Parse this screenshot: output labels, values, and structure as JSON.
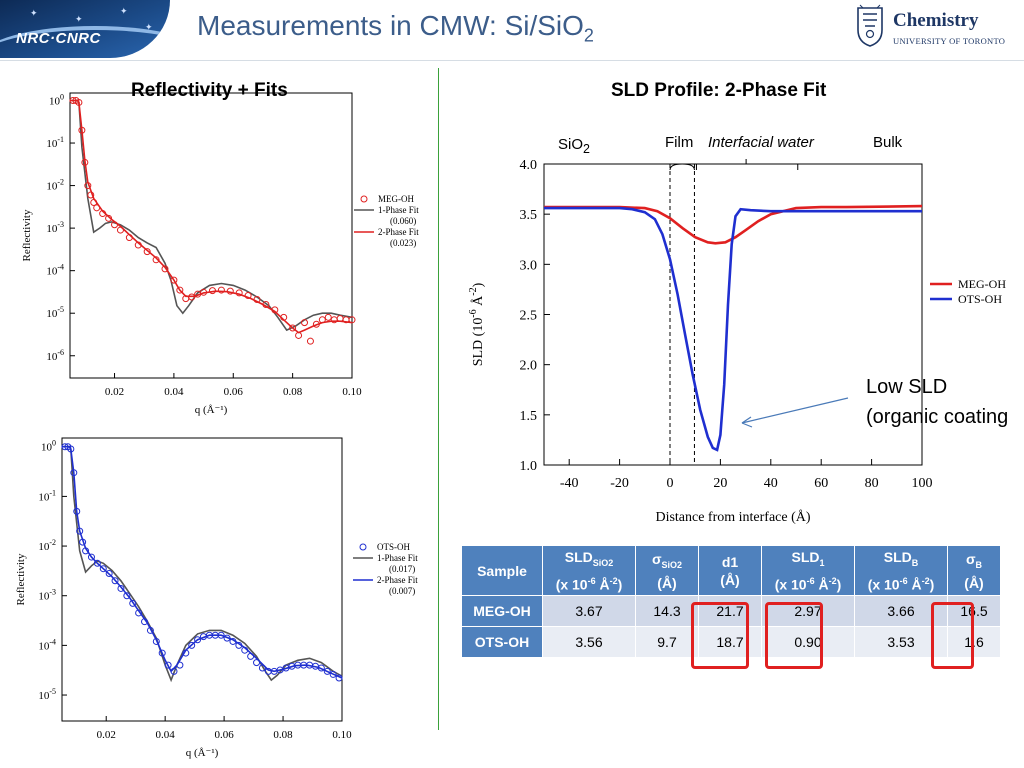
{
  "header": {
    "title_main": "Measurements in CMW: Si/SiO",
    "title_sub": "2",
    "nrc_logo_text": "NRC·CNRC",
    "uoft_chemistry": "Chemistry",
    "uoft_university": "UNIVERSITY OF TORONTO"
  },
  "colors": {
    "red": "#e02020",
    "blue": "#1f2fd0",
    "gray": "#555555",
    "title": "#3c5d8a",
    "table_header": "#4f81bd",
    "divider": "#3aa13a"
  },
  "left": {
    "title": "Reflectivity + Fits"
  },
  "right": {
    "title": "SLD Profile:  2-Phase Fit",
    "region_sio2": "SiO",
    "region_sio2_sub": "2",
    "region_film": "Film",
    "region_water": "Interfacial water",
    "region_bulk": "Bulk",
    "annotation_line1": "Low SLD",
    "annotation_line2": "(organic coating"
  },
  "chart_data": [
    {
      "type": "scatter",
      "name": "meg-reflectivity",
      "xlabel": "q (Å⁻¹)",
      "ylabel": "Reflectivity",
      "y_scale": "log",
      "xlim": [
        0.005,
        0.1
      ],
      "ylim": [
        3e-07,
        1.5
      ],
      "xticks": [
        "0.02",
        "0.04",
        "0.06",
        "0.08",
        "0.10"
      ],
      "xtick_values": [
        0.02,
        0.04,
        0.06,
        0.08,
        0.1
      ],
      "yticks_exp": [
        0,
        -1,
        -2,
        -3,
        -4,
        -5,
        -6
      ],
      "legend_position": "right",
      "legend": [
        {
          "label": "MEG-OH",
          "style": "marker",
          "color": "#e02020"
        },
        {
          "label": "1-Phase Fit",
          "sub": "(0.060)",
          "style": "line",
          "color": "#555555"
        },
        {
          "label": "2-Phase Fit",
          "sub": "(0.023)",
          "style": "line",
          "color": "#e02020"
        }
      ],
      "series": [
        {
          "name": "MEG-OH",
          "kind": "points",
          "color": "#e02020",
          "x": [
            0.006,
            0.007,
            0.008,
            0.009,
            0.01,
            0.011,
            0.012,
            0.013,
            0.014,
            0.016,
            0.018,
            0.02,
            0.022,
            0.025,
            0.028,
            0.031,
            0.034,
            0.037,
            0.04,
            0.042,
            0.044,
            0.046,
            0.048,
            0.05,
            0.053,
            0.056,
            0.059,
            0.062,
            0.065,
            0.068,
            0.071,
            0.074,
            0.077,
            0.08,
            0.082,
            0.084,
            0.086,
            0.088,
            0.09,
            0.092,
            0.094,
            0.096,
            0.098,
            0.1
          ],
          "y": [
            1,
            1,
            0.9,
            0.2,
            0.035,
            0.01,
            0.006,
            0.004,
            0.003,
            0.0022,
            0.0017,
            0.0012,
            0.0009,
            0.0006,
            0.0004,
            0.00028,
            0.00018,
            0.00011,
            6e-05,
            3.5e-05,
            2.2e-05,
            2.4e-05,
            2.8e-05,
            3.1e-05,
            3.4e-05,
            3.5e-05,
            3.3e-05,
            3e-05,
            2.6e-05,
            2.1e-05,
            1.6e-05,
            1.2e-05,
            8e-06,
            4.5e-06,
            3e-06,
            6e-06,
            2.2e-06,
            5.5e-06,
            7e-06,
            8e-06,
            7e-06,
            7.5e-06,
            7e-06,
            7e-06
          ]
        },
        {
          "name": "1-Phase Fit",
          "kind": "line",
          "color": "#555555",
          "x": [
            0.005,
            0.0075,
            0.008,
            0.009,
            0.011,
            0.013,
            0.015,
            0.017,
            0.019,
            0.022,
            0.025,
            0.028,
            0.031,
            0.034,
            0.037,
            0.039,
            0.041,
            0.043,
            0.045,
            0.048,
            0.052,
            0.056,
            0.06,
            0.064,
            0.068,
            0.072,
            0.075,
            0.078,
            0.081,
            0.084,
            0.087,
            0.09,
            0.093,
            0.096,
            0.1
          ],
          "y": [
            1,
            1,
            0.9,
            0.08,
            0.005,
            0.0008,
            0.001,
            0.0013,
            0.0014,
            0.0012,
            0.0009,
            0.0006,
            0.00045,
            0.00035,
            0.00015,
            6e-05,
            1.5e-05,
            1e-05,
            1.5e-05,
            3e-05,
            4.5e-05,
            5e-05,
            4.5e-05,
            3.5e-05,
            2.4e-05,
            1.5e-05,
            8e-06,
            4e-06,
            5e-06,
            7e-06,
            9e-06,
            1e-05,
            1e-05,
            9e-06,
            8e-06
          ]
        },
        {
          "name": "2-Phase Fit",
          "kind": "line",
          "color": "#e02020",
          "x": [
            0.005,
            0.0075,
            0.008,
            0.009,
            0.01,
            0.011,
            0.013,
            0.016,
            0.019,
            0.022,
            0.025,
            0.028,
            0.031,
            0.034,
            0.037,
            0.04,
            0.042,
            0.044,
            0.047,
            0.05,
            0.054,
            0.058,
            0.062,
            0.066,
            0.07,
            0.074,
            0.077,
            0.08,
            0.082,
            0.084,
            0.087,
            0.09,
            0.093,
            0.096,
            0.1
          ],
          "y": [
            1,
            1,
            0.9,
            0.2,
            0.04,
            0.012,
            0.005,
            0.0025,
            0.0016,
            0.0011,
            0.0007,
            0.00045,
            0.0003,
            0.0002,
            0.00012,
            6e-05,
            3.5e-05,
            2.5e-05,
            2.5e-05,
            3e-05,
            3.3e-05,
            3.2e-05,
            2.8e-05,
            2.2e-05,
            1.6e-05,
            1.1e-05,
            7e-06,
            4.5e-06,
            3.5e-06,
            4e-06,
            5e-06,
            6e-06,
            6.5e-06,
            6.5e-06,
            6e-06
          ]
        }
      ]
    },
    {
      "type": "scatter",
      "name": "ots-reflectivity",
      "xlabel": "q (Å⁻¹)",
      "ylabel": "Reflectivity",
      "y_scale": "log",
      "xlim": [
        0.005,
        0.1
      ],
      "ylim": [
        3e-06,
        1.5
      ],
      "xticks": [
        "0.02",
        "0.04",
        "0.06",
        "0.08",
        "0.10"
      ],
      "xtick_values": [
        0.02,
        0.04,
        0.06,
        0.08,
        0.1
      ],
      "yticks_exp": [
        0,
        -1,
        -2,
        -3,
        -4,
        -5
      ],
      "legend_position": "right",
      "legend": [
        {
          "label": "OTS-OH",
          "style": "marker",
          "color": "#1f2fd0"
        },
        {
          "label": "1-Phase Fit",
          "sub": "(0.017)",
          "style": "line",
          "color": "#555555"
        },
        {
          "label": "2-Phase Fit",
          "sub": "(0.007)",
          "style": "line",
          "color": "#1f2fd0"
        }
      ],
      "series": [
        {
          "name": "OTS-OH",
          "kind": "points",
          "color": "#1f2fd0",
          "x": [
            0.006,
            0.007,
            0.008,
            0.009,
            0.01,
            0.011,
            0.012,
            0.013,
            0.015,
            0.017,
            0.019,
            0.021,
            0.023,
            0.025,
            0.027,
            0.029,
            0.031,
            0.033,
            0.035,
            0.037,
            0.039,
            0.041,
            0.043,
            0.045,
            0.047,
            0.049,
            0.051,
            0.053,
            0.055,
            0.057,
            0.059,
            0.061,
            0.063,
            0.065,
            0.067,
            0.069,
            0.071,
            0.073,
            0.075,
            0.077,
            0.079,
            0.081,
            0.083,
            0.085,
            0.087,
            0.089,
            0.091,
            0.093,
            0.095,
            0.097,
            0.099
          ],
          "y": [
            1,
            1,
            0.9,
            0.3,
            0.05,
            0.02,
            0.012,
            0.008,
            0.006,
            0.0045,
            0.0035,
            0.0028,
            0.002,
            0.0014,
            0.001,
            0.0007,
            0.00045,
            0.0003,
            0.0002,
            0.00012,
            7e-05,
            4e-05,
            3e-05,
            4e-05,
            7e-05,
            0.0001,
            0.00013,
            0.00015,
            0.00016,
            0.00016,
            0.00016,
            0.00014,
            0.00012,
            0.0001,
            8e-05,
            6e-05,
            4.5e-05,
            3.5e-05,
            3e-05,
            3e-05,
            3.2e-05,
            3.5e-05,
            3.8e-05,
            4e-05,
            4e-05,
            4e-05,
            3.8e-05,
            3.5e-05,
            3e-05,
            2.6e-05,
            2.2e-05
          ]
        },
        {
          "name": "1-Phase Fit",
          "kind": "line",
          "color": "#555555",
          "x": [
            0.005,
            0.0075,
            0.008,
            0.009,
            0.011,
            0.013,
            0.015,
            0.017,
            0.019,
            0.022,
            0.025,
            0.028,
            0.031,
            0.034,
            0.037,
            0.04,
            0.042,
            0.044,
            0.047,
            0.051,
            0.055,
            0.059,
            0.063,
            0.067,
            0.071,
            0.074,
            0.076,
            0.078,
            0.081,
            0.085,
            0.089,
            0.093,
            0.097,
            0.1
          ],
          "y": [
            1,
            1,
            0.9,
            0.1,
            0.008,
            0.003,
            0.004,
            0.005,
            0.0045,
            0.0032,
            0.002,
            0.0011,
            0.0006,
            0.0003,
            0.00014,
            4e-05,
            2e-05,
            4e-05,
            0.0001,
            0.00017,
            0.0002,
            0.0002,
            0.00016,
            0.00011,
            6e-05,
            3e-05,
            2e-05,
            2.5e-05,
            4e-05,
            5e-05,
            5.5e-05,
            4.5e-05,
            3e-05,
            2.4e-05
          ]
        },
        {
          "name": "2-Phase Fit",
          "kind": "line",
          "color": "#1f2fd0",
          "x": [
            0.005,
            0.0075,
            0.008,
            0.009,
            0.01,
            0.011,
            0.013,
            0.015,
            0.017,
            0.019,
            0.022,
            0.025,
            0.028,
            0.031,
            0.034,
            0.037,
            0.04,
            0.042,
            0.044,
            0.047,
            0.051,
            0.055,
            0.059,
            0.063,
            0.067,
            0.071,
            0.075,
            0.077,
            0.08,
            0.084,
            0.088,
            0.092,
            0.096,
            0.1
          ],
          "y": [
            1,
            1,
            0.9,
            0.3,
            0.05,
            0.02,
            0.009,
            0.006,
            0.0045,
            0.0035,
            0.0024,
            0.0015,
            0.0009,
            0.0005,
            0.00028,
            0.00013,
            5e-05,
            3e-05,
            4e-05,
            8e-05,
            0.00013,
            0.00016,
            0.00016,
            0.00013,
            9e-05,
            5.5e-05,
            3.2e-05,
            3e-05,
            3.3e-05,
            3.9e-05,
            4e-05,
            3.6e-05,
            2.8e-05,
            2.2e-05
          ]
        }
      ]
    },
    {
      "type": "line",
      "name": "sld-profile",
      "xlabel": "Distance from interface (Å)",
      "ylabel_main": "SLD (10",
      "ylabel_exp": "-6",
      "ylabel_unit": " Å",
      "ylabel_exp2": "-2",
      "ylabel_close": ")",
      "xlim": [
        -50,
        100
      ],
      "ylim": [
        1.0,
        4.0
      ],
      "xticks": [
        "-40",
        "-20",
        "0",
        "20",
        "40",
        "60",
        "80",
        "100"
      ],
      "xtick_values": [
        -40,
        -20,
        0,
        20,
        40,
        60,
        80,
        100
      ],
      "yticks": [
        "1.0",
        "1.5",
        "2.0",
        "2.5",
        "3.0",
        "3.5",
        "4.0"
      ],
      "ytick_values": [
        1.0,
        1.5,
        2.0,
        2.5,
        3.0,
        3.5,
        4.0
      ],
      "vlines_x": [
        0,
        9.7
      ],
      "legend_position": "right",
      "series": [
        {
          "name": "MEG-OH",
          "color": "#e02020",
          "x": [
            -50,
            -20,
            -10,
            -5,
            0,
            5,
            10,
            15,
            18,
            22,
            26,
            30,
            35,
            40,
            50,
            60,
            70,
            100
          ],
          "y": [
            3.57,
            3.57,
            3.56,
            3.53,
            3.46,
            3.36,
            3.27,
            3.22,
            3.21,
            3.22,
            3.27,
            3.34,
            3.43,
            3.5,
            3.56,
            3.57,
            3.57,
            3.58
          ]
        },
        {
          "name": "OTS-OH",
          "color": "#1f2fd0",
          "x": [
            -50,
            -20,
            -15,
            -10,
            -6,
            -3,
            0,
            3,
            6,
            9,
            12,
            15,
            17,
            18.7,
            20,
            21.5,
            23,
            24.5,
            26,
            28,
            32,
            40,
            60,
            100
          ],
          "y": [
            3.56,
            3.56,
            3.55,
            3.52,
            3.45,
            3.3,
            3.05,
            2.7,
            2.3,
            1.9,
            1.55,
            1.28,
            1.17,
            1.15,
            1.3,
            1.8,
            2.6,
            3.2,
            3.48,
            3.55,
            3.54,
            3.53,
            3.53,
            3.53
          ]
        }
      ]
    }
  ],
  "table": {
    "headers": [
      {
        "main": "Sample"
      },
      {
        "main": "SLD",
        "sub": "SiO2",
        "line2a": "(x 10",
        "sup1": "-6",
        "line2b": " Å",
        "sup2": "-2",
        "line2c": ")"
      },
      {
        "main": "σ",
        "sub": "SiO2",
        "line2": "(Å)"
      },
      {
        "main": "d1",
        "line2": "(Å)"
      },
      {
        "main": "SLD",
        "sub": "1",
        "line2a": "(x 10",
        "sup1": "-6",
        "line2b": " Å",
        "sup2": "-2",
        "line2c": ")"
      },
      {
        "main": "SLD",
        "sub": "B",
        "line2a": "(x 10",
        "sup1": "-6",
        "line2b": " Å",
        "sup2": "-2",
        "line2c": ")"
      },
      {
        "main": "σ",
        "sub": "B",
        "line2": "(Å)"
      }
    ],
    "rows": [
      {
        "sample": "MEG-OH",
        "values": [
          "3.67",
          "14.3",
          "21.7",
          "2.97",
          "3.66",
          "16.5"
        ]
      },
      {
        "sample": "OTS-OH",
        "values": [
          "3.56",
          "9.7",
          "18.7",
          "0.90",
          "3.53",
          "1.6"
        ]
      }
    ]
  }
}
